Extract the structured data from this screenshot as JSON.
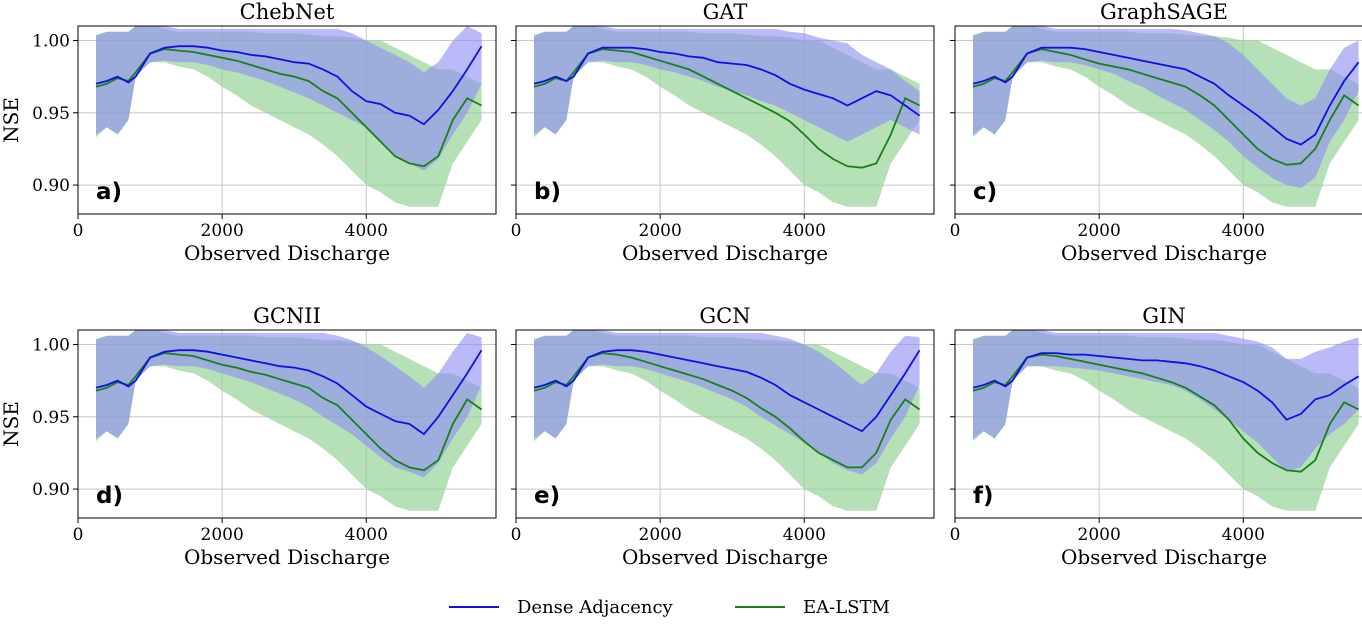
{
  "chart_data": {
    "type": "line",
    "xlabel": "Observed Discharge",
    "ylabel": "NSE",
    "xlim": [
      0,
      5800
    ],
    "ylim": [
      0.88,
      1.01
    ],
    "xticks": [
      0,
      2000,
      4000
    ],
    "xtick_labels": [
      "0",
      "2000",
      "4000"
    ],
    "yticks": [
      0.9,
      0.95,
      1.0
    ],
    "ytick_labels": [
      "0.90",
      "0.95",
      "1.00"
    ],
    "grid": true,
    "legend": {
      "placement": "bottom-center",
      "entries": [
        {
          "label": "Dense Adjacency",
          "color": "#1010e0"
        },
        {
          "label": "EA-LSTM",
          "color": "#1a7f1a"
        }
      ]
    },
    "band_colors": {
      "dense": "#8c8cf5",
      "ealstm": "#8fd18f"
    },
    "x": [
      250,
      400,
      550,
      700,
      800,
      1000,
      1200,
      1400,
      1600,
      1800,
      2000,
      2200,
      2400,
      2600,
      2800,
      3000,
      3200,
      3400,
      3600,
      3800,
      4000,
      4200,
      4400,
      4600,
      4800,
      5000,
      5200,
      5400,
      5600
    ],
    "ealstm_band": {
      "upper": [
        1.004,
        1.006,
        1.006,
        1.006,
        1.01,
        1.011,
        1.008,
        1.006,
        1.006,
        1.006,
        1.006,
        1.006,
        1.006,
        1.005,
        1.005,
        1.005,
        1.004,
        1.003,
        1.003,
        1.002,
        1.0,
        1.0,
        0.995,
        0.99,
        0.985,
        0.98,
        0.98,
        0.975,
        0.97
      ],
      "lower": [
        0.933,
        0.94,
        0.935,
        0.945,
        0.975,
        0.985,
        0.985,
        0.982,
        0.98,
        0.975,
        0.968,
        0.962,
        0.955,
        0.95,
        0.945,
        0.94,
        0.935,
        0.928,
        0.92,
        0.91,
        0.9,
        0.895,
        0.888,
        0.885,
        0.885,
        0.885,
        0.915,
        0.93,
        0.945
      ]
    },
    "panels": [
      {
        "title": "ChebNet",
        "label": "a)",
        "series": [
          {
            "name": "Dense Adjacency",
            "values": [
              0.97,
              0.972,
              0.975,
              0.971,
              0.975,
              0.991,
              0.995,
              0.996,
              0.996,
              0.995,
              0.993,
              0.992,
              0.99,
              0.989,
              0.987,
              0.985,
              0.984,
              0.98,
              0.975,
              0.965,
              0.958,
              0.956,
              0.95,
              0.948,
              0.942,
              0.952,
              0.965,
              0.98,
              0.996
            ]
          },
          {
            "name": "EA-LSTM",
            "values": [
              0.968,
              0.97,
              0.974,
              0.972,
              0.978,
              0.991,
              0.994,
              0.993,
              0.992,
              0.99,
              0.988,
              0.986,
              0.983,
              0.98,
              0.977,
              0.975,
              0.972,
              0.965,
              0.96,
              0.95,
              0.94,
              0.93,
              0.92,
              0.915,
              0.913,
              0.92,
              0.945,
              0.96,
              0.955
            ]
          }
        ],
        "dense_band": {
          "upper": [
            1.003,
            1.006,
            1.006,
            1.006,
            1.01,
            1.011,
            1.01,
            1.008,
            1.008,
            1.008,
            1.008,
            1.008,
            1.008,
            1.008,
            1.008,
            1.008,
            1.008,
            1.008,
            1.008,
            1.005,
            1.0,
            0.995,
            0.99,
            0.985,
            0.978,
            0.985,
            1.0,
            1.01,
            1.005
          ],
          "lower": [
            0.935,
            0.94,
            0.935,
            0.945,
            0.975,
            0.985,
            0.986,
            0.985,
            0.985,
            0.983,
            0.98,
            0.978,
            0.975,
            0.972,
            0.968,
            0.964,
            0.96,
            0.955,
            0.95,
            0.945,
            0.94,
            0.93,
            0.92,
            0.915,
            0.91,
            0.918,
            0.935,
            0.95,
            0.97
          ]
        }
      },
      {
        "title": "GAT",
        "label": "b)",
        "series": [
          {
            "name": "Dense Adjacency",
            "values": [
              0.97,
              0.972,
              0.975,
              0.972,
              0.975,
              0.991,
              0.995,
              0.995,
              0.995,
              0.994,
              0.992,
              0.991,
              0.989,
              0.988,
              0.985,
              0.984,
              0.983,
              0.98,
              0.976,
              0.97,
              0.966,
              0.963,
              0.96,
              0.955,
              0.96,
              0.965,
              0.962,
              0.955,
              0.948
            ]
          },
          {
            "name": "EA-LSTM",
            "values": [
              0.968,
              0.97,
              0.974,
              0.972,
              0.978,
              0.991,
              0.994,
              0.993,
              0.992,
              0.989,
              0.986,
              0.983,
              0.98,
              0.975,
              0.97,
              0.965,
              0.96,
              0.955,
              0.95,
              0.944,
              0.935,
              0.925,
              0.918,
              0.913,
              0.912,
              0.915,
              0.935,
              0.96,
              0.955
            ]
          }
        ],
        "dense_band": {
          "upper": [
            1.003,
            1.006,
            1.006,
            1.006,
            1.01,
            1.011,
            1.01,
            1.008,
            1.008,
            1.008,
            1.008,
            1.008,
            1.008,
            1.008,
            1.008,
            1.008,
            1.008,
            1.008,
            1.008,
            1.006,
            1.005,
            1.002,
            1.0,
            0.998,
            0.99,
            0.985,
            0.98,
            0.972,
            0.965
          ],
          "lower": [
            0.935,
            0.94,
            0.935,
            0.945,
            0.975,
            0.985,
            0.986,
            0.985,
            0.985,
            0.983,
            0.98,
            0.978,
            0.975,
            0.972,
            0.968,
            0.965,
            0.962,
            0.958,
            0.955,
            0.95,
            0.945,
            0.94,
            0.935,
            0.93,
            0.935,
            0.94,
            0.945,
            0.94,
            0.935
          ]
        }
      },
      {
        "title": "GraphSAGE",
        "label": "c)",
        "series": [
          {
            "name": "Dense Adjacency",
            "values": [
              0.97,
              0.972,
              0.975,
              0.971,
              0.975,
              0.991,
              0.995,
              0.995,
              0.995,
              0.994,
              0.992,
              0.99,
              0.988,
              0.986,
              0.984,
              0.982,
              0.98,
              0.975,
              0.97,
              0.962,
              0.955,
              0.948,
              0.94,
              0.932,
              0.928,
              0.935,
              0.955,
              0.972,
              0.985
            ]
          },
          {
            "name": "EA-LSTM",
            "values": [
              0.968,
              0.97,
              0.974,
              0.972,
              0.978,
              0.991,
              0.994,
              0.992,
              0.99,
              0.987,
              0.984,
              0.982,
              0.98,
              0.977,
              0.974,
              0.971,
              0.968,
              0.962,
              0.955,
              0.945,
              0.935,
              0.925,
              0.918,
              0.914,
              0.915,
              0.925,
              0.945,
              0.962,
              0.955
            ]
          }
        ],
        "dense_band": {
          "upper": [
            1.003,
            1.006,
            1.006,
            1.006,
            1.01,
            1.011,
            1.01,
            1.008,
            1.008,
            1.008,
            1.008,
            1.008,
            1.008,
            1.008,
            1.008,
            1.008,
            1.007,
            1.005,
            1.003,
            0.998,
            0.99,
            0.98,
            0.97,
            0.96,
            0.955,
            0.96,
            0.98,
            0.995,
            1.0
          ],
          "lower": [
            0.935,
            0.94,
            0.935,
            0.945,
            0.975,
            0.985,
            0.986,
            0.985,
            0.985,
            0.983,
            0.98,
            0.977,
            0.972,
            0.968,
            0.962,
            0.957,
            0.952,
            0.945,
            0.938,
            0.93,
            0.92,
            0.912,
            0.905,
            0.9,
            0.898,
            0.905,
            0.93,
            0.945,
            0.965
          ]
        }
      },
      {
        "title": "GCNII",
        "label": "d)",
        "series": [
          {
            "name": "Dense Adjacency",
            "values": [
              0.97,
              0.972,
              0.975,
              0.971,
              0.975,
              0.991,
              0.995,
              0.996,
              0.996,
              0.995,
              0.993,
              0.991,
              0.989,
              0.987,
              0.985,
              0.984,
              0.982,
              0.978,
              0.973,
              0.965,
              0.957,
              0.952,
              0.947,
              0.945,
              0.938,
              0.95,
              0.965,
              0.98,
              0.996
            ]
          },
          {
            "name": "EA-LSTM",
            "values": [
              0.968,
              0.97,
              0.974,
              0.972,
              0.978,
              0.991,
              0.994,
              0.993,
              0.992,
              0.989,
              0.986,
              0.984,
              0.981,
              0.979,
              0.976,
              0.973,
              0.97,
              0.963,
              0.958,
              0.948,
              0.938,
              0.928,
              0.92,
              0.915,
              0.913,
              0.92,
              0.945,
              0.962,
              0.955
            ]
          }
        ],
        "dense_band": {
          "upper": [
            1.003,
            1.006,
            1.006,
            1.006,
            1.01,
            1.011,
            1.01,
            1.008,
            1.008,
            1.008,
            1.008,
            1.008,
            1.008,
            1.008,
            1.008,
            1.008,
            1.008,
            1.008,
            1.006,
            1.003,
            0.998,
            0.992,
            0.985,
            0.978,
            0.97,
            0.98,
            0.995,
            1.008,
            1.005
          ],
          "lower": [
            0.935,
            0.94,
            0.935,
            0.945,
            0.975,
            0.985,
            0.986,
            0.985,
            0.985,
            0.983,
            0.98,
            0.977,
            0.974,
            0.97,
            0.966,
            0.962,
            0.957,
            0.95,
            0.944,
            0.938,
            0.93,
            0.922,
            0.915,
            0.912,
            0.908,
            0.918,
            0.935,
            0.95,
            0.972
          ]
        }
      },
      {
        "title": "GCN",
        "label": "e)",
        "series": [
          {
            "name": "Dense Adjacency",
            "values": [
              0.97,
              0.972,
              0.975,
              0.971,
              0.975,
              0.991,
              0.995,
              0.996,
              0.996,
              0.995,
              0.993,
              0.991,
              0.989,
              0.987,
              0.985,
              0.983,
              0.981,
              0.977,
              0.972,
              0.965,
              0.96,
              0.955,
              0.95,
              0.945,
              0.94,
              0.95,
              0.965,
              0.98,
              0.996
            ]
          },
          {
            "name": "EA-LSTM",
            "values": [
              0.968,
              0.97,
              0.974,
              0.972,
              0.978,
              0.991,
              0.994,
              0.993,
              0.991,
              0.988,
              0.985,
              0.982,
              0.979,
              0.976,
              0.972,
              0.968,
              0.963,
              0.956,
              0.95,
              0.942,
              0.933,
              0.925,
              0.92,
              0.915,
              0.915,
              0.925,
              0.948,
              0.962,
              0.955
            ]
          }
        ],
        "dense_band": {
          "upper": [
            1.003,
            1.006,
            1.006,
            1.006,
            1.01,
            1.011,
            1.01,
            1.008,
            1.008,
            1.008,
            1.008,
            1.008,
            1.008,
            1.008,
            1.008,
            1.008,
            1.008,
            1.008,
            1.006,
            1.004,
            1.0,
            0.995,
            0.988,
            0.98,
            0.972,
            0.98,
            0.995,
            1.006,
            1.005
          ],
          "lower": [
            0.935,
            0.94,
            0.935,
            0.945,
            0.975,
            0.985,
            0.986,
            0.985,
            0.985,
            0.983,
            0.98,
            0.977,
            0.974,
            0.97,
            0.966,
            0.962,
            0.957,
            0.95,
            0.944,
            0.938,
            0.932,
            0.925,
            0.918,
            0.913,
            0.91,
            0.918,
            0.935,
            0.95,
            0.972
          ]
        }
      },
      {
        "title": "GIN",
        "label": "f)",
        "series": [
          {
            "name": "Dense Adjacency",
            "values": [
              0.97,
              0.972,
              0.975,
              0.971,
              0.975,
              0.991,
              0.994,
              0.994,
              0.993,
              0.993,
              0.992,
              0.991,
              0.99,
              0.989,
              0.989,
              0.988,
              0.987,
              0.985,
              0.982,
              0.978,
              0.974,
              0.968,
              0.96,
              0.948,
              0.952,
              0.962,
              0.965,
              0.972,
              0.978
            ]
          },
          {
            "name": "EA-LSTM",
            "values": [
              0.968,
              0.97,
              0.974,
              0.972,
              0.978,
              0.991,
              0.993,
              0.992,
              0.99,
              0.988,
              0.986,
              0.984,
              0.982,
              0.98,
              0.977,
              0.974,
              0.97,
              0.964,
              0.958,
              0.948,
              0.935,
              0.925,
              0.918,
              0.913,
              0.912,
              0.92,
              0.945,
              0.96,
              0.955
            ]
          }
        ],
        "dense_band": {
          "upper": [
            1.003,
            1.006,
            1.006,
            1.006,
            1.01,
            1.011,
            1.01,
            1.008,
            1.008,
            1.008,
            1.008,
            1.008,
            1.008,
            1.008,
            1.008,
            1.008,
            1.008,
            1.008,
            1.008,
            1.006,
            1.004,
            1.002,
            0.998,
            0.99,
            0.99,
            0.995,
            0.998,
            1.002,
            1.005
          ],
          "lower": [
            0.935,
            0.94,
            0.935,
            0.945,
            0.975,
            0.985,
            0.985,
            0.985,
            0.984,
            0.983,
            0.982,
            0.98,
            0.978,
            0.976,
            0.974,
            0.972,
            0.968,
            0.962,
            0.955,
            0.948,
            0.94,
            0.932,
            0.922,
            0.912,
            0.915,
            0.928,
            0.938,
            0.945,
            0.955
          ]
        }
      }
    ]
  }
}
